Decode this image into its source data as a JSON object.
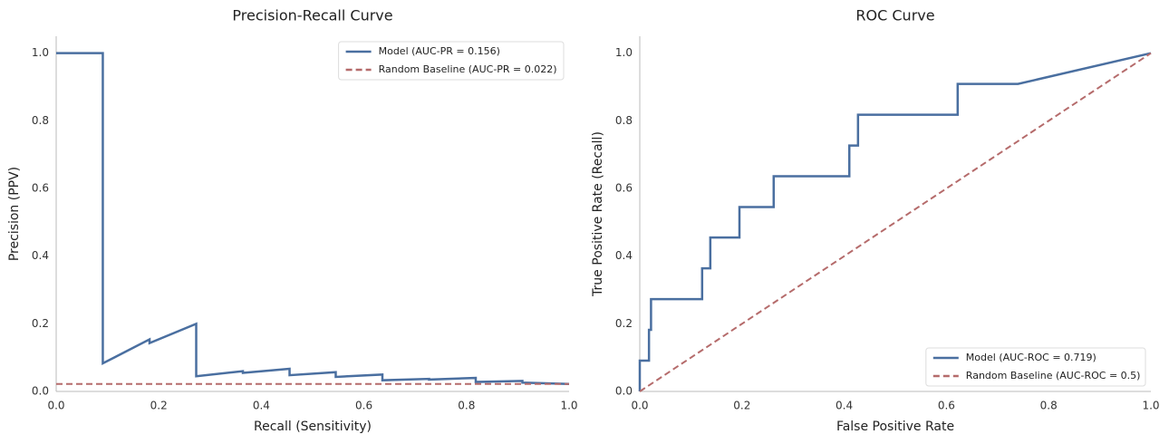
{
  "chart_data": [
    {
      "type": "line",
      "title": "Precision-Recall Curve",
      "x_label": "Recall (Sensitivity)",
      "y_label": "Precision (PPV)",
      "xlim": [
        0,
        1
      ],
      "ylim": [
        0,
        1.05
      ],
      "xticks": [
        {
          "value": 0,
          "label": "0.0"
        },
        {
          "value": 0.2,
          "label": "0.2"
        },
        {
          "value": 0.4,
          "label": "0.4"
        },
        {
          "value": 0.6,
          "label": "0.6"
        },
        {
          "value": 0.8,
          "label": "0.8"
        },
        {
          "value": 1,
          "label": "1.0"
        }
      ],
      "yticks": [
        {
          "value": 0,
          "label": "0.0"
        },
        {
          "value": 0.2,
          "label": "0.2"
        },
        {
          "value": 0.4,
          "label": "0.4"
        },
        {
          "value": 0.6,
          "label": "0.6"
        },
        {
          "value": 0.8,
          "label": "0.8"
        },
        {
          "value": 1,
          "label": "1.0"
        }
      ],
      "legend": "upper right",
      "series": [
        {
          "name": "Model (AUC-PR = 0.156)",
          "color": "#4a6fa0",
          "linestyle": "solid",
          "x": [
            0,
            0.0909,
            0.0909,
            0.182,
            0.182,
            0.273,
            0.273,
            0.364,
            0.364,
            0.455,
            0.455,
            0.545,
            0.545,
            0.636,
            0.636,
            0.727,
            0.727,
            0.818,
            0.818,
            0.909,
            0.909,
            1
          ],
          "values": [
            1,
            1,
            0.083,
            0.154,
            0.143,
            0.2,
            0.045,
            0.06,
            0.055,
            0.067,
            0.048,
            0.057,
            0.043,
            0.05,
            0.033,
            0.037,
            0.035,
            0.04,
            0.028,
            0.031,
            0.026,
            0.022
          ]
        },
        {
          "name": "Random Baseline (AUC-PR = 0.022)",
          "color": "#b56b6b",
          "linestyle": "dashed",
          "x": [
            0,
            1
          ],
          "values": [
            0.022,
            0.022
          ]
        }
      ]
    },
    {
      "type": "line",
      "title": "ROC Curve",
      "x_label": "False Positive Rate",
      "y_label": "True Positive Rate (Recall)",
      "xlim": [
        0,
        1
      ],
      "ylim": [
        0,
        1.05
      ],
      "xticks": [
        {
          "value": 0,
          "label": "0.0"
        },
        {
          "value": 0.2,
          "label": "0.2"
        },
        {
          "value": 0.4,
          "label": "0.4"
        },
        {
          "value": 0.6,
          "label": "0.6"
        },
        {
          "value": 0.8,
          "label": "0.8"
        },
        {
          "value": 1,
          "label": "1.0"
        }
      ],
      "yticks": [
        {
          "value": 0,
          "label": "0.0"
        },
        {
          "value": 0.2,
          "label": "0.2"
        },
        {
          "value": 0.4,
          "label": "0.4"
        },
        {
          "value": 0.6,
          "label": "0.6"
        },
        {
          "value": 0.8,
          "label": "0.8"
        },
        {
          "value": 1,
          "label": "1.0"
        }
      ],
      "legend": "lower right",
      "series": [
        {
          "name": "Model (AUC-ROC = 0.719)",
          "color": "#4a6fa0",
          "linestyle": "solid",
          "x": [
            0,
            0,
            0.018,
            0.018,
            0.022,
            0.022,
            0.122,
            0.122,
            0.138,
            0.138,
            0.195,
            0.195,
            0.262,
            0.262,
            0.41,
            0.41,
            0.427,
            0.427,
            0.622,
            0.622,
            0.74,
            1
          ],
          "values": [
            0,
            0.091,
            0.091,
            0.182,
            0.182,
            0.273,
            0.273,
            0.364,
            0.364,
            0.455,
            0.455,
            0.545,
            0.545,
            0.636,
            0.636,
            0.727,
            0.727,
            0.818,
            0.818,
            0.909,
            0.909,
            1
          ]
        },
        {
          "name": "Random Baseline (AUC-ROC = 0.5)",
          "color": "#b56b6b",
          "linestyle": "dashed",
          "x": [
            0,
            1
          ],
          "values": [
            0,
            1
          ]
        }
      ]
    }
  ]
}
